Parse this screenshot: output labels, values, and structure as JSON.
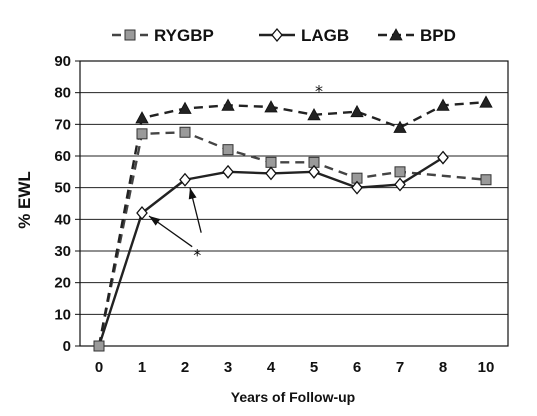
{
  "chart_data": {
    "type": "line",
    "xlabel": "Years of Follow-up",
    "ylabel": "% EWL",
    "x_categories": [
      "0",
      "1",
      "2",
      "3",
      "4",
      "5",
      "6",
      "7",
      "8",
      "10"
    ],
    "y_ticks": [
      "0",
      "10",
      "20",
      "30",
      "40",
      "50",
      "60",
      "70",
      "80",
      "90"
    ],
    "ylim": [
      0,
      90
    ],
    "grid": "horizontal",
    "legend_position": "top",
    "series": [
      {
        "name": "RYGBP",
        "marker": "square",
        "line_style": "dashed",
        "color": "#444444",
        "marker_color": "#9a9a9a",
        "x": [
          "0",
          "1",
          "2",
          "3",
          "4",
          "5",
          "6",
          "7",
          "10"
        ],
        "values": [
          0,
          67,
          67.5,
          62,
          58,
          58,
          53,
          55,
          52.5
        ]
      },
      {
        "name": "LAGB",
        "marker": "diamond",
        "line_style": "solid",
        "color": "#222222",
        "marker_color": "#ffffff",
        "x": [
          "0",
          "1",
          "2",
          "3",
          "4",
          "5",
          "6",
          "7",
          "8"
        ],
        "values": [
          0,
          42,
          52.5,
          55,
          54.5,
          55,
          50,
          51,
          59.5
        ]
      },
      {
        "name": "BPD",
        "marker": "triangle",
        "line_style": "dashed",
        "color": "#222222",
        "marker_color": "#222222",
        "x": [
          "0",
          "1",
          "2",
          "3",
          "4",
          "5",
          "6",
          "7",
          "8",
          "10"
        ],
        "values": [
          0,
          72,
          75,
          76,
          75.5,
          73,
          74,
          69,
          76,
          77
        ]
      }
    ],
    "annotations": [
      {
        "text": "*",
        "x": "5",
        "y": 82
      },
      {
        "text": "*",
        "x": "2.4",
        "y": 32
      }
    ]
  }
}
